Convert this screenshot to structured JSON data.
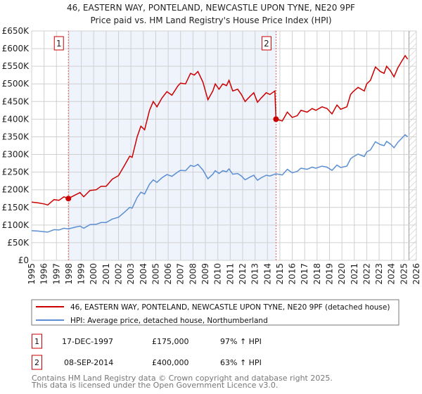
{
  "chart_data": {
    "type": "line",
    "title": "46, EASTERN WAY, PONTELAND, NEWCASTLE UPON TYNE, NE20 9PF",
    "subtitle": "Price paid vs. HM Land Registry's House Price Index (HPI)",
    "xlim": [
      1995,
      2026
    ],
    "ylim": [
      0,
      650000
    ],
    "grid": true,
    "y_ticks": [
      0,
      50000,
      100000,
      150000,
      200000,
      250000,
      300000,
      350000,
      400000,
      450000,
      500000,
      550000,
      600000,
      650000
    ],
    "y_tick_labels": [
      "£0",
      "£50K",
      "£100K",
      "£150K",
      "£200K",
      "£250K",
      "£300K",
      "£350K",
      "£400K",
      "£450K",
      "£500K",
      "£550K",
      "£600K",
      "£650K"
    ],
    "x_tick_labels": [
      "1995",
      "1996",
      "1997",
      "1998",
      "1999",
      "2000",
      "2001",
      "2002",
      "2003",
      "2004",
      "2005",
      "2006",
      "2007",
      "2008",
      "2009",
      "2010",
      "2011",
      "2012",
      "2013",
      "2014",
      "2015",
      "2016",
      "2017",
      "2018",
      "2019",
      "2020",
      "2021",
      "2022",
      "2023",
      "2024",
      "2025",
      "2026"
    ],
    "x": [
      1995.0,
      1995.5,
      1996.0,
      1996.3,
      1996.8,
      1997.2,
      1997.6,
      1997.96,
      1998.5,
      1998.9,
      1999.2,
      1999.7,
      2000.2,
      2000.6,
      2001.0,
      2001.5,
      2002.0,
      2002.5,
      2002.9,
      2003.1,
      2003.5,
      2003.8,
      2004.1,
      2004.5,
      2004.8,
      2005.1,
      2005.5,
      2005.9,
      2006.3,
      2006.8,
      2007.0,
      2007.4,
      2007.8,
      2008.1,
      2008.4,
      2008.8,
      2009.2,
      2009.6,
      2009.8,
      2010.1,
      2010.4,
      2010.7,
      2010.9,
      2011.2,
      2011.6,
      2011.9,
      2012.2,
      2012.6,
      2012.9,
      2013.2,
      2013.5,
      2013.9,
      2014.2,
      2014.6,
      2014.69,
      2015.2,
      2015.6,
      2016.0,
      2016.4,
      2016.7,
      2017.2,
      2017.6,
      2017.9,
      2018.4,
      2018.8,
      2019.2,
      2019.6,
      2019.9,
      2020.4,
      2020.7,
      2020.9,
      2021.3,
      2021.8,
      2022.0,
      2022.3,
      2022.7,
      2023.1,
      2023.4,
      2023.6,
      2023.9,
      2024.2,
      2024.5,
      2024.8,
      2025.1,
      2025.3
    ],
    "series": [
      {
        "name": "46, EASTERN WAY, PONTELAND, NEWCASTLE UPON TYNE, NE20 9PF (detached house)",
        "color": "#cc0000",
        "values": [
          165,
          163,
          160,
          157,
          172,
          170,
          180,
          175,
          185,
          192,
          180,
          198,
          200,
          210,
          210,
          230,
          240,
          270,
          295,
          292,
          350,
          380,
          370,
          425,
          450,
          435,
          460,
          478,
          468,
          495,
          502,
          500,
          530,
          525,
          535,
          505,
          455,
          480,
          500,
          485,
          500,
          495,
          510,
          480,
          485,
          470,
          450,
          465,
          475,
          448,
          460,
          475,
          470,
          480,
          400,
          395,
          420,
          405,
          410,
          425,
          420,
          430,
          425,
          435,
          430,
          415,
          440,
          428,
          435,
          470,
          478,
          490,
          480,
          500,
          510,
          548,
          535,
          530,
          550,
          538,
          520,
          545,
          563,
          580,
          570
        ]
      },
      {
        "name": "HPI: Average price, detached house, Northumberland",
        "color": "#5b8fd4",
        "values": [
          84,
          83,
          81,
          80,
          87,
          86,
          91,
          89,
          94,
          97,
          91,
          101,
          102,
          107,
          107,
          117,
          122,
          137,
          150,
          148,
          178,
          193,
          188,
          216,
          228,
          221,
          234,
          243,
          238,
          251,
          255,
          254,
          269,
          266,
          272,
          256,
          231,
          244,
          254,
          246,
          254,
          251,
          259,
          244,
          246,
          239,
          228,
          236,
          241,
          227,
          234,
          241,
          239,
          244,
          245,
          242,
          258,
          248,
          252,
          261,
          258,
          264,
          261,
          267,
          264,
          255,
          270,
          263,
          267,
          288,
          293,
          301,
          294,
          307,
          313,
          336,
          328,
          325,
          337,
          330,
          319,
          334,
          345,
          356,
          350
        ]
      }
    ],
    "value_units": "thousands GBP",
    "sales": [
      {
        "id": "1",
        "x": 1997.96,
        "date": "17-DEC-1997",
        "price": "£175,000",
        "value": 175,
        "hpi": "97% ↑ HPI"
      },
      {
        "id": "2",
        "x": 2014.69,
        "date": "08-SEP-2014",
        "price": "£400,000",
        "value": 400,
        "hpi": "63% ↑ HPI"
      }
    ],
    "forecast_start": 2025.4
  },
  "footer": [
    "Contains HM Land Registry data © Crown copyright and database right 2025.",
    "This data is licensed under the Open Government Licence v3.0."
  ]
}
